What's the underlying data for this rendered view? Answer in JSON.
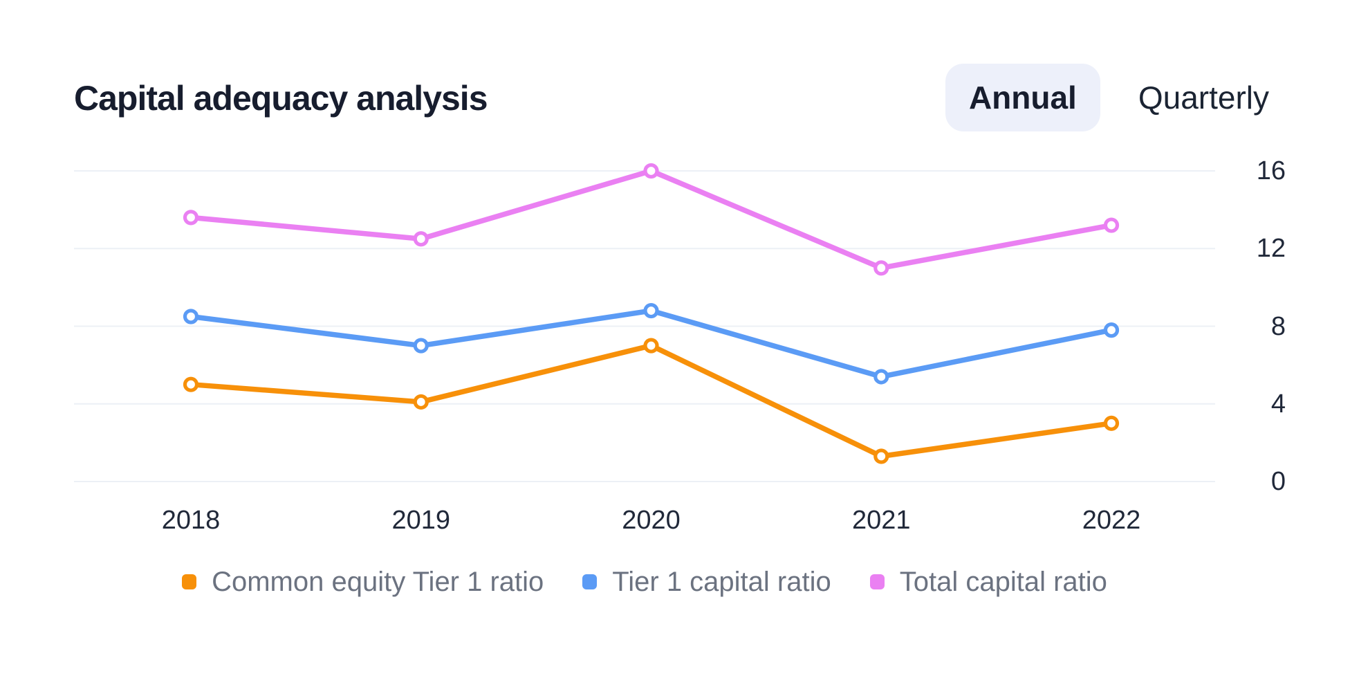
{
  "header": {
    "title": "Capital adequacy analysis",
    "period_toggle": {
      "options": [
        {
          "label": "Annual",
          "active": true
        },
        {
          "label": "Quarterly",
          "active": false
        }
      ]
    }
  },
  "chart_data": {
    "type": "line",
    "title": "Capital adequacy analysis",
    "x_labels": [
      "2018",
      "2019",
      "2020",
      "2021",
      "2022"
    ],
    "series": [
      {
        "name": "Common equity Tier 1 ratio",
        "color": "#F79009",
        "values": [
          5.0,
          4.1,
          7.0,
          1.3,
          3.0
        ]
      },
      {
        "name": "Tier 1 capital ratio",
        "color": "#5B9BF5",
        "values": [
          8.5,
          7.0,
          8.8,
          5.4,
          7.8
        ]
      },
      {
        "name": "Total capital ratio",
        "color": "#EA80F2",
        "values": [
          13.6,
          12.5,
          16.0,
          11.0,
          13.2
        ]
      }
    ],
    "ylim": [
      0,
      16
    ],
    "yticks": [
      0,
      4,
      8,
      12,
      16
    ],
    "y_axis_side": "right",
    "grid": true,
    "legend_position": "bottom",
    "point_style": "open-circle"
  },
  "colors": {
    "background": "#FFFFFF",
    "gridline": "#ECF0F6",
    "text_dark": "#1A212F",
    "legend_text": "#6B7280",
    "toggle_active_bg": "#EDF0FA"
  }
}
